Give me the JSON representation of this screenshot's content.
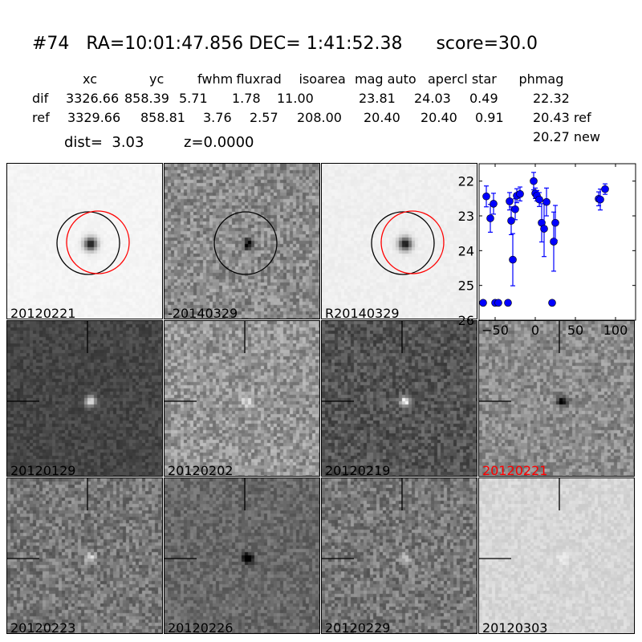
{
  "header": {
    "title": "#74   RA=10:01:47.856 DEC= 1:41:52.38      score=30.0",
    "columns": [
      "xc",
      "yc",
      "fwhm",
      "fluxrad",
      "isoarea",
      "mag auto",
      "aper",
      "cl star",
      "phmag"
    ],
    "rows": [
      {
        "label": "dif",
        "values": [
          "3326.66",
          "858.39",
          "5.71",
          "1.78",
          "11.00",
          "23.81",
          "24.03",
          "0.49",
          "22.32"
        ]
      },
      {
        "label": "ref",
        "values": [
          "3329.66",
          "858.81",
          "3.76",
          "2.57",
          "208.00",
          "20.40",
          "20.40",
          "0.91",
          "20.43 ref"
        ]
      }
    ],
    "phmag_new": "20.27 new",
    "dist": "dist=  3.03",
    "z": "z=0.0000"
  },
  "panels": [
    {
      "label": "20120221",
      "label_color": "#000000",
      "tone": 245,
      "noise": 4,
      "star": -1,
      "circles": true
    },
    {
      "label": "-20140329",
      "label_color": "#000000",
      "tone": 140,
      "noise": 40,
      "star": -0.6,
      "circles": "black"
    },
    {
      "label": "R20140329",
      "label_color": "#000000",
      "tone": 240,
      "noise": 5,
      "star": -1,
      "circles": true
    },
    {
      "label": "20120129",
      "label_color": "#000000",
      "tone": 70,
      "noise": 18,
      "star": 1
    },
    {
      "label": "20120202",
      "label_color": "#000000",
      "tone": 150,
      "noise": 40,
      "star": 0.5
    },
    {
      "label": "20120219",
      "label_color": "#000000",
      "tone": 85,
      "noise": 30,
      "star": 1
    },
    {
      "label": "20120221",
      "label_color": "#ff0000",
      "tone": 140,
      "noise": 35,
      "star": -0.6
    },
    {
      "label": "20120223",
      "label_color": "#000000",
      "tone": 120,
      "noise": 38,
      "star": 0.6
    },
    {
      "label": "20120226",
      "label_color": "#000000",
      "tone": 105,
      "noise": 25,
      "star": -0.7
    },
    {
      "label": "20120229",
      "label_color": "#000000",
      "tone": 120,
      "noise": 38,
      "star": 0.5
    },
    {
      "label": "20120303",
      "label_color": "#000000",
      "tone": 215,
      "noise": 12,
      "star": 0.15
    }
  ],
  "chart_data": {
    "type": "scatter",
    "title": "",
    "xlabel": "",
    "ylabel": "",
    "xlim": [
      -70,
      125
    ],
    "ylim": [
      26,
      21.5
    ],
    "y_inverted": true,
    "xticks": [
      -50,
      0,
      50,
      100
    ],
    "yticks": [
      22,
      23,
      24,
      25,
      26
    ],
    "grid": false,
    "color": "#0000ff",
    "points": [
      {
        "x": -61,
        "y": 22.44,
        "err": 0.3
      },
      {
        "x": -56,
        "y": 23.07,
        "err": 0.4
      },
      {
        "x": -52,
        "y": 22.65,
        "err": 0.3
      },
      {
        "x": -32,
        "y": 22.58,
        "err": 0.25
      },
      {
        "x": -30,
        "y": 23.14,
        "err": 0.4
      },
      {
        "x": -28,
        "y": 24.26,
        "err": 0.75
      },
      {
        "x": -25,
        "y": 22.81,
        "err": 0.3
      },
      {
        "x": -23,
        "y": 22.42,
        "err": 0.2
      },
      {
        "x": -19,
        "y": 22.37,
        "err": 0.2
      },
      {
        "x": -2,
        "y": 22.0,
        "err": 0.25
      },
      {
        "x": 0,
        "y": 22.35,
        "err": 0.15
      },
      {
        "x": 2,
        "y": 22.42,
        "err": 0.15
      },
      {
        "x": 5,
        "y": 22.53,
        "err": 0.2
      },
      {
        "x": 8,
        "y": 23.2,
        "err": 0.55
      },
      {
        "x": 11,
        "y": 23.37,
        "err": 0.8
      },
      {
        "x": 14,
        "y": 22.6,
        "err": 0.4
      },
      {
        "x": 23,
        "y": 23.74,
        "err": 0.85
      },
      {
        "x": 25,
        "y": 23.2,
        "err": 0.5
      },
      {
        "x": 79,
        "y": 22.51,
        "err": 0.2
      },
      {
        "x": 81,
        "y": 22.53,
        "err": 0.3
      },
      {
        "x": 87,
        "y": 22.23,
        "err": 0.15
      },
      {
        "x": -65,
        "y": 25.5,
        "err": 0.05
      },
      {
        "x": -50,
        "y": 25.5,
        "err": 0.05
      },
      {
        "x": -46,
        "y": 25.5,
        "err": 0.05
      },
      {
        "x": -34,
        "y": 25.5,
        "err": 0.05
      },
      {
        "x": 21,
        "y": 25.5,
        "err": 0.05
      }
    ]
  }
}
